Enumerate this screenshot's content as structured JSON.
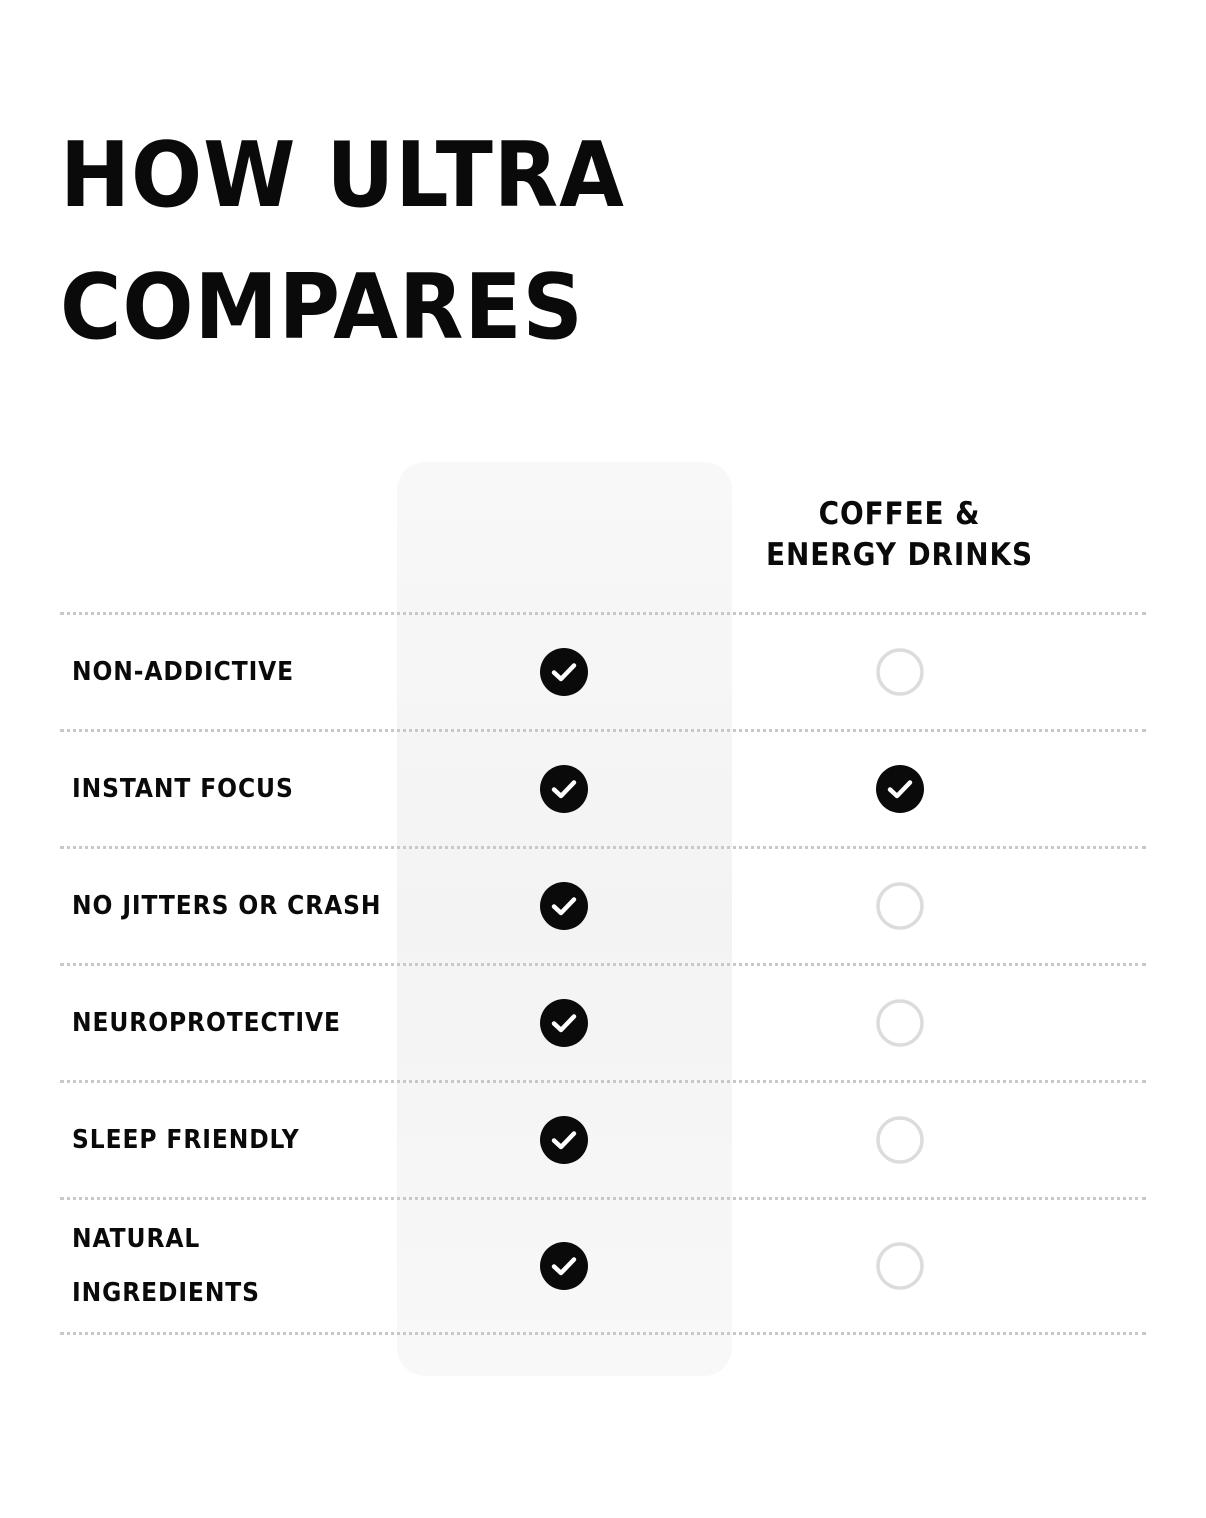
{
  "heading": {
    "line1": "HOW ULTRA",
    "line2": "COMPARES"
  },
  "columns": {
    "competitor_line1": "COFFEE &",
    "competitor_line2": "ENERGY DRINKS"
  },
  "rows": [
    {
      "label": "NON-ADDICTIVE",
      "ultra": true,
      "competitor": false
    },
    {
      "label": "INSTANT FOCUS",
      "ultra": true,
      "competitor": true
    },
    {
      "label": "NO JITTERS OR CRASH",
      "ultra": true,
      "competitor": false
    },
    {
      "label": "NEUROPROTECTIVE",
      "ultra": true,
      "competitor": false
    },
    {
      "label": "SLEEP FRIENDLY",
      "ultra": true,
      "competitor": false
    },
    {
      "label": "NATURAL INGREDIENTS",
      "ultra": true,
      "competitor": false
    }
  ],
  "icons": {
    "yes": "check-circle-icon",
    "no": "empty-circle-icon"
  },
  "colors": {
    "check_fill": "#0a0a0a",
    "empty_stroke": "#dcdcdc",
    "ultra_column_bg": "#f5f5f5",
    "divider": "#c8c8c8"
  }
}
